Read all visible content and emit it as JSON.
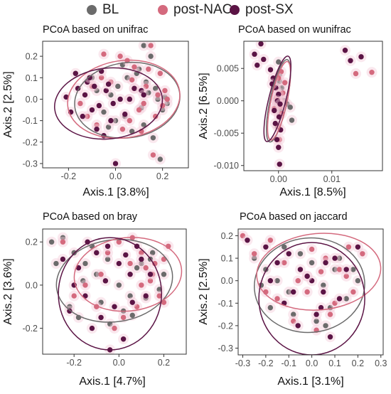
{
  "legend": [
    {
      "label": "BL",
      "color": "#6b6b6b"
    },
    {
      "label": "post-NAC",
      "color": "#d46a7e"
    },
    {
      "label": "post-SX",
      "color": "#5b1445"
    }
  ],
  "chart_data": [
    {
      "type": "scatter",
      "title": "PCoA based on unifrac",
      "xlabel": "Axis.1   [3.8%]",
      "ylabel": "Axis.2   [2.5%]",
      "xlim": [
        -0.31,
        0.31
      ],
      "ylim": [
        -0.32,
        0.27
      ],
      "xticks": [
        -0.2,
        0.0,
        0.2
      ],
      "xtick_labels": [
        "-0.2",
        "0.0",
        "0.2"
      ],
      "yticks": [
        -0.3,
        -0.2,
        -0.1,
        0.0,
        0.1,
        0.2
      ],
      "ytick_labels": [
        "-0.3",
        "-0.2",
        "-0.1",
        "0.0",
        "0.1",
        "0.2"
      ],
      "series": [
        {
          "name": "BL",
          "color": "#6b6b6b",
          "x": [
            0.12,
            0.15,
            0.1,
            0.05,
            0.08,
            0.14,
            0.18,
            0.22,
            0.2,
            0.04,
            -0.02,
            0.01,
            0.12,
            0.07,
            -0.05,
            -0.1,
            0.16,
            0.19,
            0.09,
            0.03,
            -0.08,
            0.11,
            0.06,
            0.13,
            0.21,
            0.0,
            -0.03,
            0.17
          ],
          "y": [
            0.25,
            0.2,
            0.14,
            0.1,
            0.05,
            0.03,
            0.0,
            -0.02,
            -0.05,
            -0.08,
            0.02,
            0.06,
            -0.12,
            -0.15,
            -0.06,
            0.1,
            -0.18,
            -0.28,
            0.12,
            0.16,
            0.04,
            -0.04,
            0.0,
            0.08,
            0.01,
            -0.1,
            -0.13,
            0.05
          ]
        },
        {
          "name": "post-NAC",
          "color": "#d46a7e",
          "x": [
            0.15,
            -0.05,
            0.02,
            0.08,
            0.19,
            0.21,
            0.12,
            0.17,
            -0.15,
            -0.12,
            -0.08,
            0.05,
            0.13,
            0.22,
            0.1,
            0.16,
            -0.02,
            0.03,
            0.14,
            -0.06,
            0.2,
            0.06,
            -0.1,
            0.18,
            0.11,
            0.07
          ],
          "y": [
            0.25,
            0.21,
            0.2,
            0.15,
            0.12,
            0.04,
            -0.02,
            -0.08,
            -0.02,
            -0.08,
            -0.12,
            0.18,
            0.06,
            0.0,
            -0.05,
            -0.26,
            0.08,
            -0.14,
            0.14,
            0.1,
            -0.03,
            -0.1,
            0.06,
            0.02,
            -0.15,
            0.09
          ]
        },
        {
          "name": "post-SX",
          "color": "#5b1445",
          "x": [
            -0.21,
            -0.17,
            -0.12,
            -0.09,
            -0.06,
            -0.04,
            -0.1,
            -0.14,
            -0.02,
            0.0,
            -0.08,
            -0.05,
            -0.11,
            -0.03,
            0.02,
            0.08,
            0.11,
            -0.07,
            -0.13,
            -0.16,
            0.04,
            0.06,
            -0.01,
            -0.19,
            0.12
          ],
          "y": [
            0.01,
            0.12,
            0.08,
            0.06,
            0.13,
            0.04,
            -0.05,
            -0.08,
            -0.1,
            -0.3,
            -0.14,
            -0.17,
            0.1,
            0.07,
            0.0,
            0.05,
            0.04,
            -0.03,
            0.02,
            0.05,
            -0.07,
            0.0,
            -0.02,
            -0.06,
            0.02
          ]
        }
      ],
      "ellipses": [
        {
          "series": "BL",
          "cx": 0.05,
          "cy": -0.005,
          "rx": 0.225,
          "ry": 0.175,
          "angle": 8
        },
        {
          "series": "post-NAC",
          "cx": 0.035,
          "cy": 0.0,
          "rx": 0.24,
          "ry": 0.18,
          "angle": 8
        },
        {
          "series": "post-SX",
          "cx": -0.03,
          "cy": -0.02,
          "rx": 0.23,
          "ry": 0.165,
          "angle": 6
        }
      ]
    },
    {
      "type": "scatter",
      "title": "PCoA based on wunifrac",
      "xlabel": "Axis.1   [8.5%]",
      "ylabel": "Axis.2   [6.5%]",
      "xlim": [
        -0.0065,
        0.0195
      ],
      "ylim": [
        -0.0108,
        0.0092
      ],
      "xticks": [
        0.0,
        0.01
      ],
      "xtick_labels": [
        "0.00",
        "0.01"
      ],
      "yticks": [
        -0.01,
        -0.005,
        0.0,
        0.005
      ],
      "ytick_labels": [
        "-0.010",
        "-0.005",
        "0.000",
        "0.005"
      ],
      "series": [
        {
          "name": "BL",
          "color": "#6b6b6b",
          "x": [
            0.0,
            0.0002,
            -0.0003,
            0.0005,
            0.0011,
            0.0016,
            0.0022,
            0.0025,
            0.0,
            -0.0006,
            0.0003,
            0.0001,
            -0.0002,
            0.0004,
            -0.0004,
            0.0002,
            -0.0001,
            0.0003,
            0.0006,
            -0.0003
          ],
          "y": [
            0.006,
            0.004,
            0.0025,
            0.001,
            0.0,
            -0.0005,
            -0.001,
            -0.003,
            -0.0002,
            0.0002,
            0.0015,
            -0.002,
            -0.004,
            0.0005,
            -0.0008,
            0.003,
            0.0008,
            -0.0015,
            0.002,
            -0.0003
          ]
        },
        {
          "name": "post-NAC",
          "color": "#d46a7e",
          "x": [
            0.0005,
            0.0,
            -0.0005,
            0.0002,
            0.0004,
            -0.0002,
            0.0003,
            0.0001,
            -0.0004,
            0.0006,
            0.0,
            0.0002,
            0.0012,
            0.0145,
            0.0175,
            -0.0008,
            0.0008,
            -0.0001
          ],
          "y": [
            0.0045,
            0.0035,
            0.002,
            0.001,
            0.0,
            -0.0002,
            -0.001,
            -0.0005,
            0.0005,
            -0.002,
            -0.004,
            -0.006,
            0.0028,
            0.0042,
            0.0044,
            -0.0012,
            0.0012,
            0.0002
          ]
        },
        {
          "name": "post-SX",
          "color": "#5b1445",
          "x": [
            -0.0045,
            -0.004,
            -0.0033,
            -0.0028,
            -0.0015,
            -0.001,
            -0.0005,
            0.0,
            -0.0002,
            0.0003,
            -0.0008,
            0.0001,
            -0.0006,
            0.0004,
            -0.0003,
            0.0,
            0.0125,
            0.0135,
            0.0155,
            -0.0012,
            0.0002
          ],
          "y": [
            0.0072,
            0.0055,
            0.0088,
            0.0064,
            0.0048,
            0.0035,
            0.002,
            0.001,
            0.0,
            -0.0005,
            -0.0015,
            -0.0025,
            -0.0035,
            -0.0045,
            -0.006,
            -0.0072,
            0.0078,
            0.0062,
            0.0068,
            0.0026,
            -0.0098
          ]
        }
      ],
      "ellipses": [
        {
          "series": "BL",
          "cx": 0.0,
          "cy": 0.0,
          "rx": 0.0016,
          "ry": 0.0065,
          "angle": -12
        },
        {
          "series": "post-NAC",
          "cx": 0.0001,
          "cy": 0.0,
          "rx": 0.0015,
          "ry": 0.0062,
          "angle": -12
        },
        {
          "series": "post-SX",
          "cx": -0.0002,
          "cy": 0.0003,
          "rx": 0.0016,
          "ry": 0.0068,
          "angle": -14
        }
      ]
    },
    {
      "type": "scatter",
      "title": "PCoA based on bray",
      "xlabel": "Axis.1   [4.7%]",
      "ylabel": "Axis.2   [3.6%]",
      "xlim": [
        -0.34,
        0.3
      ],
      "ylim": [
        -0.32,
        0.26
      ],
      "xticks": [
        -0.2,
        0.0,
        0.2
      ],
      "xtick_labels": [
        "-0.2",
        "0.0",
        "0.2"
      ],
      "yticks": [
        -0.2,
        0.0,
        0.2
      ],
      "ytick_labels": [
        "-0.2",
        "0.0",
        "0.2"
      ],
      "series": [
        {
          "name": "BL",
          "color": "#6b6b6b",
          "x": [
            -0.3,
            -0.25,
            -0.2,
            -0.15,
            -0.1,
            -0.05,
            0.0,
            0.05,
            0.1,
            0.15,
            0.2,
            -0.22,
            -0.18,
            -0.08,
            0.02,
            0.12,
            -0.28,
            -0.12,
            0.08,
            0.18,
            -0.04,
            -0.16,
            0.06,
            0.14
          ],
          "y": [
            0.2,
            0.22,
            0.15,
            0.1,
            0.05,
            0.12,
            0.0,
            -0.05,
            0.1,
            0.15,
            0.05,
            -0.1,
            -0.15,
            -0.08,
            -0.12,
            -0.06,
            0.1,
            0.18,
            0.08,
            -0.02,
            -0.18,
            0.02,
            -0.14,
            0.12
          ]
        },
        {
          "name": "post-NAC",
          "color": "#d46a7e",
          "x": [
            0.2,
            0.15,
            0.1,
            0.18,
            0.12,
            -0.05,
            0.0,
            0.05,
            0.22,
            -0.2,
            -0.15,
            -0.1,
            0.08,
            0.14,
            -0.25,
            0.02,
            0.16,
            -0.08,
            0.1,
            0.2,
            -0.02,
            0.06
          ],
          "y": [
            0.12,
            0.05,
            0.0,
            -0.05,
            0.08,
            0.15,
            0.2,
            0.1,
            0.18,
            -0.05,
            0.0,
            -0.1,
            -0.1,
            0.02,
            0.2,
            -0.15,
            0.1,
            0.05,
            0.15,
            -0.08,
            -0.2,
            0.22
          ]
        },
        {
          "name": "post-SX",
          "color": "#5b1445",
          "x": [
            -0.25,
            -0.2,
            -0.15,
            -0.1,
            -0.05,
            0.0,
            0.05,
            0.1,
            -0.02,
            -0.08,
            -0.12,
            0.02,
            0.06,
            -0.18,
            -0.22,
            0.14,
            0.08,
            -0.04,
            -0.06,
            0.12,
            -0.14,
            0.03
          ],
          "y": [
            0.12,
            0.0,
            -0.05,
            0.15,
            0.18,
            0.1,
            0.05,
            0.12,
            -0.1,
            -0.15,
            -0.2,
            -0.25,
            -0.08,
            0.08,
            -0.12,
            0.05,
            0.18,
            -0.3,
            0.02,
            -0.05,
            0.2,
            0.14
          ]
        }
      ],
      "ellipses": [
        {
          "series": "BL",
          "cx": -0.02,
          "cy": 0.02,
          "rx": 0.26,
          "ry": 0.19,
          "angle": 8
        },
        {
          "series": "post-NAC",
          "cx": 0.04,
          "cy": 0.05,
          "rx": 0.24,
          "ry": 0.17,
          "angle": 6
        },
        {
          "series": "post-SX",
          "cx": -0.04,
          "cy": -0.04,
          "rx": 0.23,
          "ry": 0.26,
          "angle": 0
        }
      ]
    },
    {
      "type": "scatter",
      "title": "PCoA based on jaccard",
      "xlabel": "Axis.1   [3.1%]",
      "ylabel": "Axis.2   [2.5%]",
      "xlim": [
        -0.32,
        0.31
      ],
      "ylim": [
        -0.33,
        0.23
      ],
      "xticks": [
        -0.3,
        -0.2,
        -0.1,
        0.0,
        0.1,
        0.2,
        0.3
      ],
      "xtick_labels": [
        "-0.3",
        "-0.2",
        "-0.1",
        "0.0",
        "0.1",
        "0.2",
        "0.3"
      ],
      "yticks": [
        -0.3,
        -0.2,
        -0.1,
        0.0,
        0.1,
        0.2
      ],
      "ytick_labels": [
        "-0.3",
        "-0.2",
        "-0.1",
        "0.0",
        "0.1",
        "0.2"
      ],
      "series": [
        {
          "name": "BL",
          "color": "#6b6b6b",
          "x": [
            -0.25,
            -0.2,
            -0.15,
            -0.1,
            -0.05,
            0.0,
            0.05,
            0.1,
            0.15,
            0.2,
            -0.18,
            -0.08,
            0.02,
            0.12,
            -0.12,
            0.08,
            0.18,
            -0.02,
            0.06,
            -0.22
          ],
          "y": [
            0.1,
            0.05,
            0.0,
            -0.05,
            0.12,
            0.08,
            -0.02,
            0.05,
            -0.08,
            0.0,
            -0.12,
            -0.15,
            -0.18,
            0.1,
            0.15,
            -0.12,
            0.05,
            0.02,
            -0.2,
            -0.02
          ]
        },
        {
          "name": "post-NAC",
          "color": "#d46a7e",
          "x": [
            -0.3,
            -0.25,
            -0.18,
            -0.12,
            -0.06,
            0.0,
            0.06,
            0.12,
            0.18,
            0.22,
            -0.15,
            -0.08,
            0.02,
            0.1,
            0.15,
            0.04,
            -0.02,
            -0.2,
            0.08,
            0.16
          ],
          "y": [
            0.2,
            0.12,
            0.18,
            0.08,
            0.0,
            0.14,
            0.1,
            0.05,
            -0.05,
            0.12,
            -0.08,
            -0.18,
            -0.22,
            -0.1,
            0.02,
            0.04,
            -0.05,
            -0.05,
            -0.15,
            0.15
          ]
        },
        {
          "name": "post-SX",
          "color": "#5b1445",
          "x": [
            -0.28,
            -0.2,
            -0.15,
            -0.1,
            -0.05,
            0.0,
            0.05,
            0.1,
            0.15,
            0.2,
            -0.12,
            -0.06,
            0.02,
            0.08,
            -0.18,
            0.12,
            -0.02,
            0.04,
            -0.08,
            0.06
          ],
          "y": [
            0.18,
            0.15,
            0.08,
            0.12,
            0.05,
            0.0,
            -0.05,
            0.1,
            0.05,
            0.15,
            -0.1,
            -0.2,
            -0.15,
            -0.25,
            0.0,
            -0.08,
            0.02,
            -0.12,
            -0.05,
            0.08
          ]
        }
      ],
      "ellipses": [
        {
          "series": "BL",
          "cx": -0.01,
          "cy": -0.02,
          "rx": 0.24,
          "ry": 0.21,
          "angle": 5
        },
        {
          "series": "post-NAC",
          "cx": 0.03,
          "cy": 0.04,
          "rx": 0.27,
          "ry": 0.17,
          "angle": 5
        },
        {
          "series": "post-SX",
          "cx": 0.0,
          "cy": -0.08,
          "rx": 0.23,
          "ry": 0.25,
          "angle": 0
        }
      ]
    }
  ]
}
